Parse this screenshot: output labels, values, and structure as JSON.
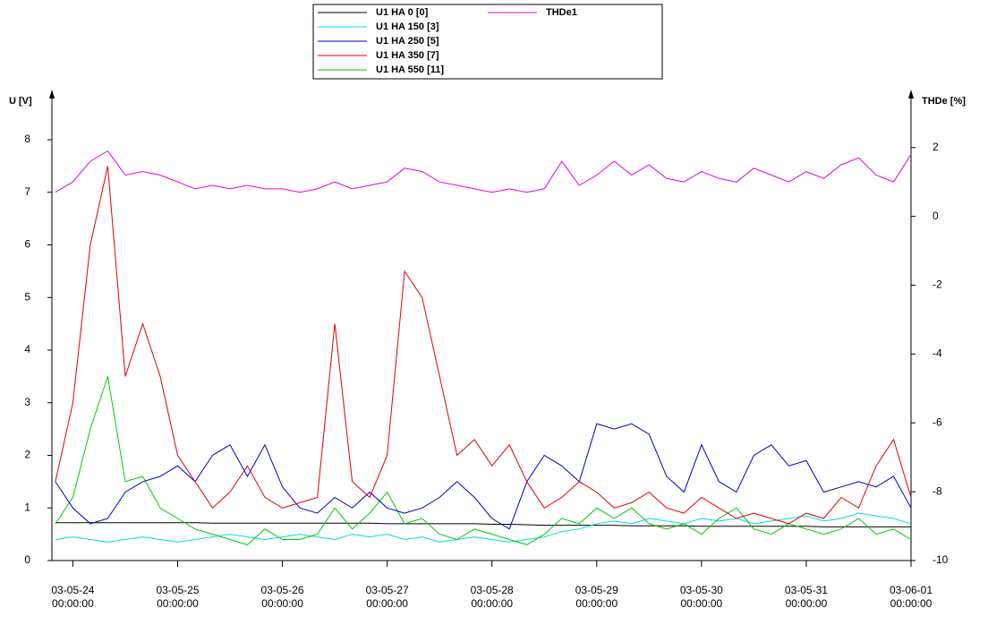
{
  "chart_data": {
    "type": "line",
    "y_label": "U [V]",
    "y2_label": "THDe [%]",
    "legend": "top",
    "x": [
      "03-05-23 20:00:00",
      "03-05-24 00:00:00",
      "03-05-24 04:00:00",
      "03-05-24 08:00:00",
      "03-05-24 12:00:00",
      "03-05-24 16:00:00",
      "03-05-24 20:00:00",
      "03-05-25 00:00:00",
      "03-05-25 04:00:00",
      "03-05-25 08:00:00",
      "03-05-25 12:00:00",
      "03-05-25 16:00:00",
      "03-05-25 20:00:00",
      "03-05-26 00:00:00",
      "03-05-26 04:00:00",
      "03-05-26 08:00:00",
      "03-05-26 12:00:00",
      "03-05-26 16:00:00",
      "03-05-26 20:00:00",
      "03-05-27 00:00:00",
      "03-05-27 04:00:00",
      "03-05-27 08:00:00",
      "03-05-27 12:00:00",
      "03-05-27 16:00:00",
      "03-05-27 20:00:00",
      "03-05-28 00:00:00",
      "03-05-28 04:00:00",
      "03-05-28 08:00:00",
      "03-05-28 12:00:00",
      "03-05-28 16:00:00",
      "03-05-28 20:00:00",
      "03-05-29 00:00:00",
      "03-05-29 04:00:00",
      "03-05-29 08:00:00",
      "03-05-29 12:00:00",
      "03-05-29 16:00:00",
      "03-05-29 20:00:00",
      "03-05-30 00:00:00",
      "03-05-30 04:00:00",
      "03-05-30 08:00:00",
      "03-05-30 12:00:00",
      "03-05-30 16:00:00",
      "03-05-30 20:00:00",
      "03-05-31 00:00:00",
      "03-05-31 04:00:00",
      "03-05-31 08:00:00",
      "03-05-31 12:00:00",
      "03-05-31 16:00:00",
      "03-05-31 20:00:00",
      "03-06-01 00:00:00"
    ],
    "xlim": [
      "03-05-23 19:12:00",
      "03-06-01 00:00:00"
    ],
    "xticks": [
      "03-05-24 00:00:00",
      "03-05-25 00:00:00",
      "03-05-26 00:00:00",
      "03-05-27 00:00:00",
      "03-05-28 00:00:00",
      "03-05-29 00:00:00",
      "03-05-30 00:00:00",
      "03-05-31 00:00:00",
      "03-06-01 00:00:00"
    ],
    "ylim": [
      0,
      8.8
    ],
    "yticks": [
      0,
      1,
      2,
      3,
      4,
      5,
      6,
      7,
      8
    ],
    "y2lim": [
      -10,
      3.45
    ],
    "y2ticks": [
      -10,
      -8,
      -6,
      -4,
      -2,
      0,
      2
    ],
    "series": [
      {
        "name": "U1 HA 0 [0]",
        "color": "#000000",
        "values": [
          0.72,
          0.72,
          0.72,
          0.72,
          0.72,
          0.72,
          0.72,
          0.72,
          0.72,
          0.71,
          0.71,
          0.71,
          0.71,
          0.71,
          0.71,
          0.71,
          0.71,
          0.71,
          0.71,
          0.7,
          0.7,
          0.7,
          0.7,
          0.7,
          0.7,
          0.69,
          0.69,
          0.68,
          0.67,
          0.67,
          0.67,
          0.67,
          0.67,
          0.66,
          0.66,
          0.66,
          0.66,
          0.65,
          0.65,
          0.65,
          0.65,
          0.65,
          0.65,
          0.65,
          0.64,
          0.64,
          0.64,
          0.64,
          0.64,
          0.64
        ]
      },
      {
        "name": "U1 HA 150 [3]",
        "color": "#00dede",
        "values": [
          0.4,
          0.45,
          0.4,
          0.35,
          0.4,
          0.45,
          0.4,
          0.35,
          0.4,
          0.45,
          0.5,
          0.45,
          0.4,
          0.45,
          0.5,
          0.45,
          0.4,
          0.5,
          0.45,
          0.5,
          0.4,
          0.45,
          0.35,
          0.4,
          0.45,
          0.4,
          0.35,
          0.4,
          0.45,
          0.55,
          0.6,
          0.7,
          0.75,
          0.7,
          0.8,
          0.75,
          0.7,
          0.8,
          0.75,
          0.8,
          0.7,
          0.75,
          0.8,
          0.85,
          0.75,
          0.8,
          0.9,
          0.85,
          0.8,
          0.7
        ]
      },
      {
        "name": "U1 HA 250 [5]",
        "color": "#0000cc",
        "values": [
          1.5,
          1.0,
          0.7,
          0.8,
          1.3,
          1.5,
          1.6,
          1.8,
          1.5,
          2.0,
          2.2,
          1.6,
          2.2,
          1.4,
          1.0,
          0.9,
          1.2,
          1.0,
          1.3,
          1.0,
          0.9,
          1.0,
          1.2,
          1.5,
          1.2,
          0.8,
          0.6,
          1.5,
          2.0,
          1.8,
          1.5,
          2.6,
          2.5,
          2.6,
          2.4,
          1.6,
          1.3,
          2.2,
          1.5,
          1.3,
          2.0,
          2.2,
          1.8,
          1.9,
          1.3,
          1.4,
          1.5,
          1.4,
          1.6,
          1.0
        ]
      },
      {
        "name": "U1 HA 350 [7]",
        "color": "#e00000",
        "values": [
          1.5,
          3.0,
          6.0,
          7.5,
          3.5,
          4.5,
          3.5,
          2.0,
          1.5,
          1.0,
          1.3,
          1.8,
          1.2,
          1.0,
          1.1,
          1.2,
          4.5,
          1.5,
          1.2,
          2.0,
          5.5,
          5.0,
          3.5,
          2.0,
          2.3,
          1.8,
          2.2,
          1.5,
          1.0,
          1.2,
          1.5,
          1.3,
          1.0,
          1.1,
          1.3,
          1.0,
          0.9,
          1.2,
          1.0,
          0.8,
          0.9,
          0.8,
          0.7,
          0.9,
          0.8,
          1.2,
          1.0,
          1.8,
          2.3,
          1.2
        ]
      },
      {
        "name": "U1 HA 550 [11]",
        "color": "#00cc00",
        "values": [
          0.7,
          1.2,
          2.5,
          3.5,
          1.5,
          1.6,
          1.0,
          0.8,
          0.6,
          0.5,
          0.4,
          0.3,
          0.6,
          0.4,
          0.4,
          0.5,
          1.0,
          0.6,
          0.9,
          1.3,
          0.7,
          0.8,
          0.5,
          0.4,
          0.6,
          0.5,
          0.4,
          0.3,
          0.5,
          0.8,
          0.7,
          1.0,
          0.8,
          1.0,
          0.7,
          0.6,
          0.7,
          0.5,
          0.8,
          1.0,
          0.6,
          0.5,
          0.7,
          0.6,
          0.5,
          0.6,
          0.8,
          0.5,
          0.6,
          0.4
        ]
      },
      {
        "name": "THDe1",
        "color": "#e000e0",
        "axis": "y2",
        "values": [
          0.7,
          1.0,
          1.6,
          1.9,
          1.2,
          1.3,
          1.2,
          1.0,
          0.8,
          0.9,
          0.8,
          0.9,
          0.8,
          0.8,
          0.7,
          0.8,
          1.0,
          0.8,
          0.9,
          1.0,
          1.4,
          1.3,
          1.0,
          0.9,
          0.8,
          0.7,
          0.8,
          0.7,
          0.8,
          1.6,
          0.9,
          1.2,
          1.6,
          1.2,
          1.5,
          1.1,
          1.0,
          1.3,
          1.1,
          1.0,
          1.4,
          1.2,
          1.0,
          1.3,
          1.1,
          1.5,
          1.7,
          1.2,
          1.0,
          1.8
        ]
      }
    ]
  }
}
